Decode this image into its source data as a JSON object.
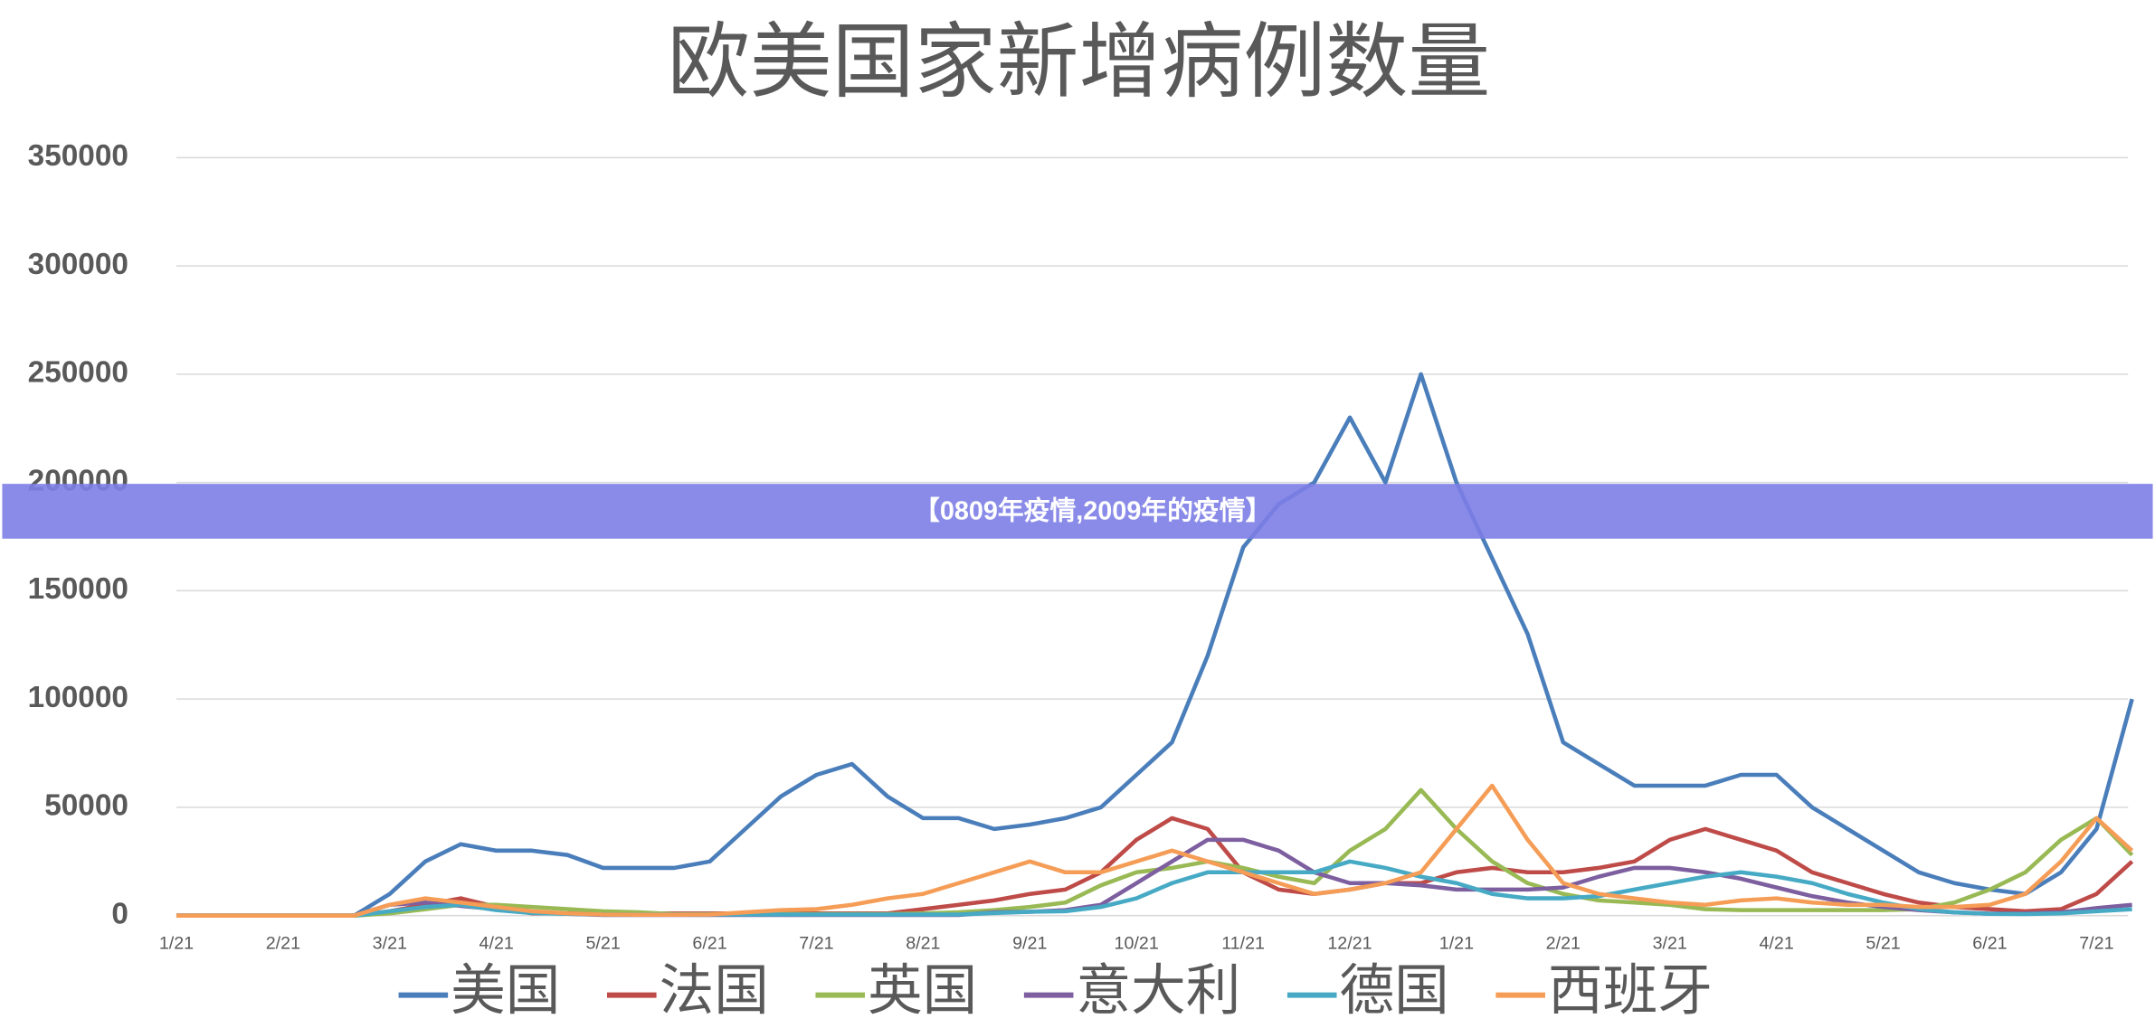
{
  "chart_data": {
    "type": "line",
    "title": "欧美国家新增病例数量",
    "categories": [
      "1/21",
      null,
      null,
      "2/21",
      null,
      null,
      "3/21",
      null,
      null,
      "4/21",
      null,
      null,
      "5/21",
      null,
      null,
      "6/21",
      null,
      null,
      "7/21",
      null,
      null,
      "8/21",
      null,
      null,
      "9/21",
      null,
      null,
      "10/21",
      null,
      null,
      "11/21",
      null,
      null,
      "12/21",
      null,
      null,
      "1/21",
      null,
      null,
      "2/21",
      null,
      null,
      "3/21",
      null,
      null,
      "4/21",
      null,
      null,
      "5/21",
      null,
      null,
      "6/21",
      null,
      null,
      "7/21",
      null
    ],
    "series": [
      {
        "name": "美国",
        "color": "#4a7ebb",
        "values": [
          0,
          0,
          0,
          0,
          0,
          0,
          10000,
          25000,
          33000,
          30000,
          30000,
          28000,
          22000,
          22000,
          22000,
          25000,
          40000,
          55000,
          65000,
          70000,
          55000,
          45000,
          45000,
          40000,
          42000,
          45000,
          50000,
          65000,
          80000,
          120000,
          170000,
          190000,
          200000,
          230000,
          200000,
          250000,
          200000,
          165000,
          130000,
          80000,
          70000,
          60000,
          60000,
          60000,
          65000,
          65000,
          50000,
          40000,
          30000,
          20000,
          15000,
          12000,
          10000,
          20000,
          40000,
          100000
        ]
      },
      {
        "name": "法国",
        "color": "#be4b48",
        "values": [
          0,
          0,
          0,
          0,
          0,
          0,
          2000,
          5000,
          8000,
          4000,
          1000,
          1000,
          1000,
          1000,
          1000,
          1000,
          1000,
          1000,
          1000,
          1000,
          1000,
          3000,
          5000,
          7000,
          10000,
          12000,
          20000,
          35000,
          45000,
          40000,
          20000,
          12000,
          10000,
          12000,
          15000,
          15000,
          20000,
          22000,
          20000,
          20000,
          22000,
          25000,
          35000,
          40000,
          35000,
          30000,
          20000,
          15000,
          10000,
          6000,
          4000,
          3000,
          2000,
          3000,
          10000,
          25000
        ]
      },
      {
        "name": "英国",
        "color": "#98b954",
        "values": [
          0,
          0,
          0,
          0,
          0,
          0,
          1000,
          3000,
          5000,
          5000,
          4000,
          3000,
          2000,
          1500,
          700,
          700,
          700,
          700,
          700,
          700,
          700,
          1000,
          1500,
          2500,
          4000,
          6000,
          14000,
          20000,
          22000,
          25000,
          22000,
          18000,
          15000,
          30000,
          40000,
          58000,
          40000,
          25000,
          15000,
          10000,
          7000,
          6000,
          5000,
          3000,
          2500,
          2500,
          2500,
          2500,
          2500,
          3000,
          6000,
          12000,
          20000,
          35000,
          45000,
          28000
        ]
      },
      {
        "name": "意大利",
        "color": "#7d5fa0",
        "values": [
          0,
          0,
          0,
          0,
          0,
          0,
          5000,
          6000,
          4500,
          3000,
          1500,
          800,
          300,
          300,
          300,
          300,
          300,
          300,
          300,
          300,
          300,
          300,
          300,
          1500,
          1800,
          2500,
          5000,
          15000,
          25000,
          35000,
          35000,
          30000,
          20000,
          15000,
          15000,
          14000,
          12000,
          12000,
          12000,
          13000,
          18000,
          22000,
          22000,
          20000,
          17000,
          13000,
          9000,
          6000,
          4000,
          2500,
          1500,
          900,
          1000,
          1500,
          3500,
          5000
        ]
      },
      {
        "name": "德国",
        "color": "#46aac5",
        "values": [
          0,
          0,
          0,
          0,
          0,
          0,
          2000,
          4000,
          5000,
          2500,
          1200,
          800,
          500,
          500,
          500,
          500,
          500,
          500,
          500,
          500,
          500,
          500,
          500,
          1200,
          1800,
          2000,
          4000,
          8000,
          15000,
          20000,
          20000,
          20000,
          20000,
          25000,
          22000,
          18000,
          15000,
          10000,
          8000,
          8000,
          9000,
          12000,
          15000,
          18000,
          20000,
          18000,
          15000,
          10000,
          6000,
          3000,
          1500,
          800,
          700,
          1000,
          2000,
          3000
        ]
      },
      {
        "name": "西班牙",
        "color": "#f59d56",
        "values": [
          0,
          0,
          0,
          0,
          0,
          0,
          5000,
          8000,
          6000,
          4000,
          2000,
          1000,
          500,
          400,
          400,
          500,
          1500,
          2500,
          3000,
          5000,
          8000,
          10000,
          15000,
          20000,
          25000,
          20000,
          20000,
          25000,
          30000,
          25000,
          20000,
          15000,
          10000,
          12000,
          15000,
          20000,
          40000,
          60000,
          35000,
          15000,
          10000,
          8000,
          6000,
          5000,
          7000,
          8000,
          6000,
          5000,
          5000,
          4000,
          4000,
          5000,
          10000,
          25000,
          45000,
          30000
        ]
      }
    ],
    "ylim": [
      0,
      350000
    ],
    "yticks": [
      0,
      50000,
      100000,
      150000,
      200000,
      250000,
      300000,
      350000
    ],
    "grid": true,
    "legend": "bottom"
  },
  "banner": "【0809年疫情,2009年的疫情】"
}
